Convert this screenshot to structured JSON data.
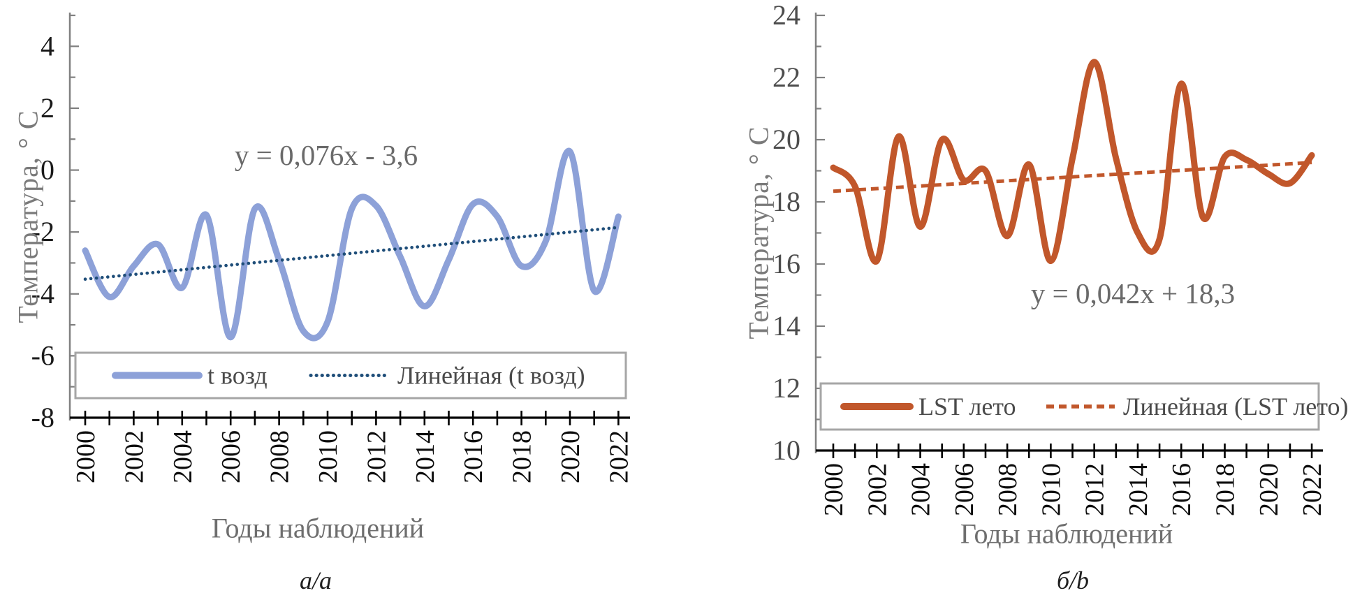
{
  "chart_data": [
    {
      "type": "line",
      "panel": "a",
      "caption": "а/а",
      "title": "",
      "xlabel": "Годы наблюдений",
      "ylabel": "Температура, ° C",
      "equation": "y = 0,076x - 3,6",
      "ylim": [
        -8,
        5
      ],
      "xlim": [
        2000,
        2022
      ],
      "grid": false,
      "legend_position": "bottom-inside",
      "y_tick_labels": [
        4,
        2,
        0,
        -2,
        -4,
        -6,
        -8
      ],
      "x_tick_label_step": 2,
      "x": [
        2000,
        2001,
        2002,
        2003,
        2004,
        2005,
        2006,
        2007,
        2008,
        2009,
        2010,
        2011,
        2012,
        2013,
        2014,
        2015,
        2016,
        2017,
        2018,
        2019,
        2020,
        2021,
        2022
      ],
      "series": [
        {
          "name": "t возд",
          "kind": "smooth-line",
          "color": "#8DA1D8",
          "stroke_width": 9,
          "values": [
            -2.6,
            -4.1,
            -3.1,
            -2.4,
            -3.8,
            -1.45,
            -5.4,
            -1.25,
            -2.9,
            -5.2,
            -4.9,
            -1.25,
            -1.15,
            -2.8,
            -4.4,
            -2.9,
            -1.1,
            -1.5,
            -3.1,
            -2.3,
            0.6,
            -3.9,
            -1.5
          ]
        },
        {
          "name": "Линейная (t возд)",
          "kind": "trend",
          "dash_style": "dotted",
          "color": "#1F4E79",
          "stroke_width": 4.6,
          "slope": 0.076,
          "intercept": -3.6
        }
      ]
    },
    {
      "type": "line",
      "panel": "b",
      "caption": "б/b",
      "title": "",
      "xlabel": "Годы наблюдений",
      "ylabel": "Температура, ° C",
      "equation": "y = 0,042x + 18,3",
      "ylim": [
        10,
        24
      ],
      "xlim": [
        2000,
        2022
      ],
      "grid": false,
      "legend_position": "bottom-inside",
      "y_tick_labels": [
        24,
        22,
        20,
        18,
        16,
        14,
        12,
        10
      ],
      "x_tick_label_step": 2,
      "x": [
        2000,
        2001,
        2002,
        2003,
        2004,
        2005,
        2006,
        2007,
        2008,
        2009,
        2010,
        2011,
        2012,
        2013,
        2014,
        2015,
        2016,
        2017,
        2018,
        2019,
        2020,
        2021,
        2022
      ],
      "series": [
        {
          "name": "LST лето",
          "kind": "smooth-line",
          "color": "#C1572B",
          "stroke_width": 9,
          "values": [
            19.1,
            18.5,
            16.1,
            20.1,
            17.2,
            20.0,
            18.7,
            19.0,
            16.9,
            19.2,
            16.1,
            19.4,
            22.5,
            19.4,
            17.0,
            16.8,
            21.8,
            17.5,
            19.45,
            19.35,
            18.9,
            18.6,
            19.5
          ]
        },
        {
          "name": "Линейная (LST лето)",
          "kind": "trend",
          "dash_style": "dashed",
          "color": "#C1572B",
          "stroke_width": 5,
          "slope": 0.042,
          "intercept": 18.3
        }
      ]
    }
  ],
  "style_colors": {
    "background": "#ffffff",
    "y_spine": "#808080",
    "x_axis": "#000000",
    "tick_label_left": "#1a1a1a",
    "tick_label_right": "#4d4d4d",
    "year_label": "#0d0d0d",
    "axis_title": "#6e6e6e",
    "equation_text": "#6a6a6a",
    "legend_text": "#4a4a4a",
    "legend_border": "#a6a6a6"
  }
}
